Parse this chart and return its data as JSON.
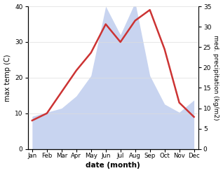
{
  "months": [
    "Jan",
    "Feb",
    "Mar",
    "Apr",
    "May",
    "Jun",
    "Jul",
    "Aug",
    "Sep",
    "Oct",
    "Nov",
    "Dec"
  ],
  "temp": [
    8,
    10,
    16,
    22,
    27,
    35,
    30,
    36,
    39,
    28,
    13,
    9
  ],
  "precip": [
    8,
    9,
    10,
    13,
    18,
    35,
    28,
    36,
    18,
    11,
    9,
    12
  ],
  "temp_color": "#cc3333",
  "precip_fill_color": "#c8d4f0",
  "temp_ylim": [
    0,
    40
  ],
  "precip_ylim": [
    0,
    35
  ],
  "xlabel": "date (month)",
  "ylabel_left": "max temp (C)",
  "ylabel_right": "med. precipitation (kg/m2)",
  "grid_color": "#dddddd",
  "temp_linewidth": 1.8
}
